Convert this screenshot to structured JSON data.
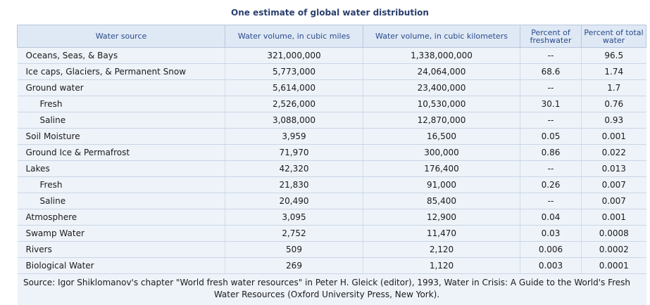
{
  "caption": "One estimate of global water distribution",
  "headers": {
    "source": "Water source",
    "cubic_miles": "Water volume, in cubic miles",
    "cubic_km": "Water volume, in cubic kilometers",
    "pct_fresh": "Percent of freshwater",
    "pct_total": "Percent of total water"
  },
  "rows": [
    {
      "source": "Oceans, Seas, & Bays",
      "miles": "321,000,000",
      "km": "1,338,000,000",
      "fresh": "--",
      "total": "96.5"
    },
    {
      "source": "Ice caps, Glaciers, & Permanent Snow",
      "miles": "5,773,000",
      "km": "24,064,000",
      "fresh": "68.6",
      "total": "1.74"
    },
    {
      "source": "Ground water",
      "miles": "5,614,000",
      "km": "23,400,000",
      "fresh": "--",
      "total": "1.7"
    },
    {
      "source": "Fresh",
      "miles": "2,526,000",
      "km": "10,530,000",
      "fresh": "30.1",
      "total": "0.76"
    },
    {
      "source": "Saline",
      "miles": "3,088,000",
      "km": "12,870,000",
      "fresh": "--",
      "total": "0.93"
    },
    {
      "source": "Soil Moisture",
      "miles": "3,959",
      "km": "16,500",
      "fresh": "0.05",
      "total": "0.001"
    },
    {
      "source": "Ground Ice & Permafrost",
      "miles": "71,970",
      "km": "300,000",
      "fresh": "0.86",
      "total": "0.022"
    },
    {
      "source": "Lakes",
      "miles": "42,320",
      "km": "176,400",
      "fresh": "--",
      "total": "0.013"
    },
    {
      "source": "Fresh",
      "miles": "21,830",
      "km": "91,000",
      "fresh": "0.26",
      "total": "0.007"
    },
    {
      "source": "Saline",
      "miles": "20,490",
      "km": "85,400",
      "fresh": "--",
      "total": "0.007"
    },
    {
      "source": "Atmosphere",
      "miles": "3,095",
      "km": "12,900",
      "fresh": "0.04",
      "total": "0.001"
    },
    {
      "source": "Swamp Water",
      "miles": "2,752",
      "km": "11,470",
      "fresh": "0.03",
      "total": "0.0008"
    },
    {
      "source": "Rivers",
      "miles": "509",
      "km": "2,120",
      "fresh": "0.006",
      "total": "0.0002"
    },
    {
      "source": "Biological Water",
      "miles": "269",
      "km": "1,120",
      "fresh": "0.003",
      "total": "0.0001"
    }
  ],
  "source_note": "Source: Igor Shiklomanov's chapter \"World fresh water resources\" in Peter H. Gleick (editor), 1993, Water in Crisis: A Guide to the World's Fresh Water Resources (Oxford University Press, New York)."
}
